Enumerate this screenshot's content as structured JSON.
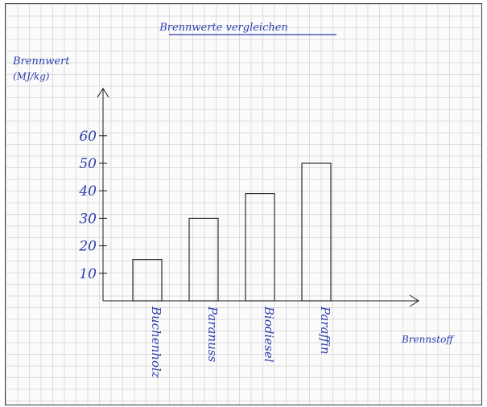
{
  "colors": {
    "ink_blue": "#2b3fb0",
    "ink_black": "#1a1a1a",
    "paper": "#fbfbfb",
    "grid": "#dcdcdc"
  },
  "chart_data": {
    "type": "bar",
    "title": "Brennwerte vergleichen",
    "ylabel_line1": "Brennwert",
    "ylabel_line2": "(MJ/kg)",
    "xlabel": "Brennstoff",
    "categories": [
      "Buchenholz",
      "Paranuss",
      "Biodiesel",
      "Paraffin"
    ],
    "values": [
      15,
      30,
      39,
      50
    ],
    "yticks": [
      10,
      20,
      30,
      40,
      50,
      60
    ],
    "ylim": [
      0,
      66
    ],
    "grid": true
  }
}
